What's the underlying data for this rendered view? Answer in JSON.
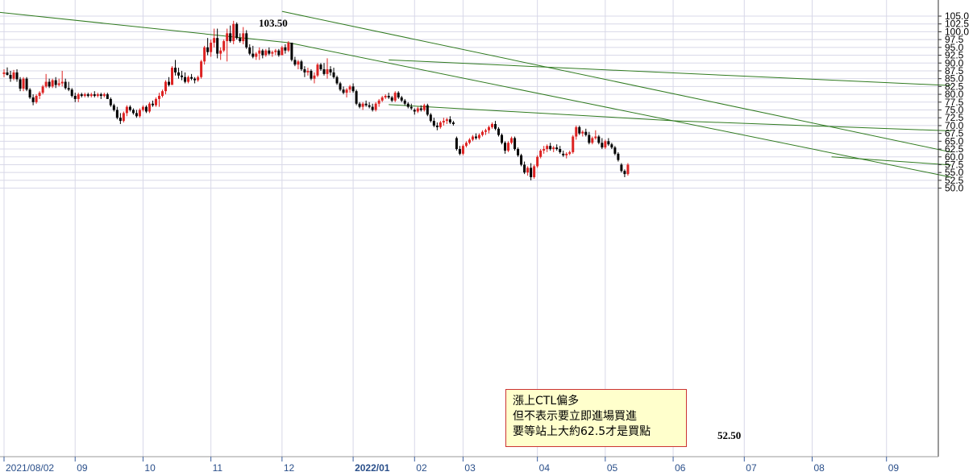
{
  "chart_data": {
    "type": "candlestick",
    "ylim": [
      50,
      106
    ],
    "yticks": [
      "105.0",
      "102.5",
      "100.0",
      "97.5",
      "95.0",
      "92.5",
      "90.0",
      "87.5",
      "85.0",
      "82.5",
      "80.0",
      "77.5",
      "75.0",
      "72.5",
      "70.0",
      "67.5",
      "65.0",
      "62.5",
      "60.0",
      "57.5",
      "55.0",
      "52.5",
      "50.0"
    ],
    "xticks": [
      {
        "label": "2021/08/02",
        "bar": 0
      },
      {
        "label": "09",
        "bar": 22
      },
      {
        "label": "10",
        "bar": 43
      },
      {
        "label": "11",
        "bar": 64
      },
      {
        "label": "12",
        "bar": 86
      },
      {
        "label": "2022/01",
        "bar": 108
      },
      {
        "label": "02",
        "bar": 127
      },
      {
        "label": "03",
        "bar": 142
      },
      {
        "label": "04",
        "bar": 165
      },
      {
        "label": "05",
        "bar": 186
      },
      {
        "label": "06",
        "bar": 207
      },
      {
        "label": "07",
        "bar": 229
      },
      {
        "label": "08",
        "bar": 250
      },
      {
        "label": "09",
        "bar": 273
      }
    ],
    "up_color": "#dd2222",
    "down_color": "#000000",
    "line_color": "#2f7a1f",
    "grid": true,
    "candles_ohlc": [
      [
        86.5,
        88.0,
        85.5,
        87.0
      ],
      [
        87.0,
        88.6,
        86.0,
        86.2
      ],
      [
        86.2,
        87.5,
        84.0,
        85.0
      ],
      [
        85.0,
        87.8,
        84.5,
        87.0
      ],
      [
        87.0,
        88.0,
        84.0,
        84.8
      ],
      [
        84.8,
        85.5,
        81.0,
        81.8
      ],
      [
        81.8,
        85.5,
        81.0,
        85.0
      ],
      [
        85.0,
        85.5,
        81.0,
        81.5
      ],
      [
        81.5,
        82.0,
        78.5,
        79.0
      ],
      [
        79.0,
        80.0,
        76.5,
        77.5
      ],
      [
        77.5,
        80.0,
        77.0,
        79.5
      ],
      [
        79.5,
        81.0,
        78.5,
        80.5
      ],
      [
        80.5,
        83.0,
        80.0,
        82.5
      ],
      [
        82.5,
        86.5,
        82.0,
        84.0
      ],
      [
        84.0,
        85.0,
        82.0,
        82.5
      ],
      [
        82.5,
        85.0,
        82.0,
        84.5
      ],
      [
        84.5,
        85.5,
        82.0,
        83.0
      ],
      [
        83.0,
        85.0,
        82.5,
        83.5
      ],
      [
        83.5,
        87.5,
        82.5,
        84.0
      ],
      [
        84.0,
        85.0,
        81.5,
        82.0
      ],
      [
        82.0,
        84.0,
        81.0,
        81.5
      ],
      [
        81.5,
        82.0,
        79.0,
        79.5
      ],
      [
        79.5,
        80.5,
        77.5,
        78.5
      ],
      [
        78.5,
        80.5,
        77.5,
        80.0
      ],
      [
        80.0,
        80.5,
        79.0,
        79.5
      ],
      [
        79.5,
        80.5,
        79.0,
        80.0
      ],
      [
        80.0,
        80.5,
        79.0,
        79.5
      ],
      [
        79.5,
        80.5,
        79.0,
        80.0
      ],
      [
        80.0,
        81.0,
        79.0,
        79.5
      ],
      [
        79.5,
        80.5,
        79.0,
        80.0
      ],
      [
        80.0,
        80.5,
        78.5,
        79.5
      ],
      [
        79.5,
        80.5,
        79.0,
        80.0
      ],
      [
        80.0,
        80.5,
        78.5,
        78.5
      ],
      [
        78.5,
        79.0,
        76.0,
        76.5
      ],
      [
        76.5,
        77.0,
        74.5,
        75.0
      ],
      [
        75.0,
        76.0,
        72.0,
        72.5
      ],
      [
        72.5,
        74.0,
        70.5,
        71.5
      ],
      [
        71.5,
        74.5,
        71.0,
        74.0
      ],
      [
        74.0,
        76.5,
        73.0,
        76.0
      ],
      [
        76.0,
        76.5,
        74.5,
        75.0
      ],
      [
        75.0,
        75.5,
        73.5,
        74.0
      ],
      [
        74.0,
        75.0,
        72.5,
        73.0
      ],
      [
        73.0,
        75.5,
        72.5,
        75.0
      ],
      [
        75.0,
        76.5,
        74.5,
        76.0
      ],
      [
        76.0,
        76.5,
        74.0,
        74.5
      ],
      [
        74.5,
        77.5,
        74.0,
        77.0
      ],
      [
        77.0,
        78.0,
        76.0,
        76.5
      ],
      [
        76.5,
        79.0,
        76.0,
        78.5
      ],
      [
        78.5,
        80.5,
        76.0,
        79.5
      ],
      [
        79.5,
        81.5,
        79.0,
        81.0
      ],
      [
        81.0,
        84.5,
        80.0,
        84.0
      ],
      [
        84.0,
        85.5,
        82.5,
        83.0
      ],
      [
        83.0,
        89.0,
        83.0,
        88.5
      ],
      [
        88.5,
        91.0,
        86.0,
        87.0
      ],
      [
        87.0,
        88.5,
        85.0,
        86.0
      ],
      [
        86.0,
        87.5,
        84.5,
        85.5
      ],
      [
        85.5,
        87.0,
        83.5,
        84.0
      ],
      [
        84.0,
        86.0,
        83.5,
        85.5
      ],
      [
        85.5,
        86.5,
        84.5,
        85.0
      ],
      [
        85.0,
        85.5,
        83.5,
        84.5
      ],
      [
        84.5,
        86.0,
        84.0,
        85.5
      ],
      [
        85.5,
        91.0,
        85.0,
        90.5
      ],
      [
        90.5,
        95.5,
        89.5,
        95.0
      ],
      [
        95.0,
        98.0,
        92.5,
        93.5
      ],
      [
        93.5,
        97.5,
        92.0,
        96.5
      ],
      [
        96.5,
        101.0,
        95.0,
        98.0
      ],
      [
        98.0,
        101.0,
        91.5,
        93.0
      ],
      [
        93.0,
        95.0,
        91.0,
        94.0
      ],
      [
        94.0,
        97.5,
        93.5,
        97.0
      ],
      [
        97.0,
        101.0,
        90.5,
        99.5
      ],
      [
        99.5,
        102.0,
        96.5,
        97.0
      ],
      [
        97.0,
        103.5,
        96.0,
        102.5
      ],
      [
        102.5,
        103.0,
        97.5,
        98.0
      ],
      [
        98.0,
        99.5,
        96.5,
        97.0
      ],
      [
        97.0,
        101.5,
        96.0,
        99.5
      ],
      [
        99.5,
        100.5,
        94.5,
        95.0
      ],
      [
        95.0,
        96.0,
        92.5,
        93.0
      ],
      [
        93.0,
        95.5,
        91.5,
        92.0
      ],
      [
        92.0,
        93.5,
        91.0,
        93.0
      ],
      [
        93.0,
        95.0,
        91.0,
        94.0
      ],
      [
        94.0,
        94.5,
        91.5,
        92.5
      ],
      [
        92.5,
        94.5,
        92.0,
        94.0
      ],
      [
        94.0,
        95.0,
        92.5,
        93.0
      ],
      [
        93.0,
        94.0,
        92.0,
        93.5
      ],
      [
        93.5,
        94.5,
        92.5,
        94.0
      ],
      [
        94.0,
        94.5,
        92.0,
        92.5
      ],
      [
        92.5,
        95.5,
        92.5,
        95.0
      ],
      [
        95.0,
        96.0,
        93.0,
        94.0
      ],
      [
        94.0,
        97.0,
        93.5,
        96.5
      ],
      [
        96.5,
        96.5,
        90.5,
        91.0
      ],
      [
        91.0,
        92.0,
        89.0,
        89.5
      ],
      [
        89.5,
        91.0,
        88.0,
        90.5
      ],
      [
        90.5,
        91.0,
        87.5,
        88.0
      ],
      [
        88.0,
        89.0,
        85.5,
        87.0
      ],
      [
        87.0,
        88.5,
        86.0,
        87.5
      ],
      [
        87.5,
        88.0,
        84.5,
        85.0
      ],
      [
        85.0,
        87.0,
        83.5,
        86.0
      ],
      [
        86.0,
        90.0,
        85.5,
        89.5
      ],
      [
        89.5,
        90.0,
        87.5,
        88.0
      ],
      [
        88.0,
        90.0,
        86.0,
        86.5
      ],
      [
        86.5,
        91.5,
        85.0,
        88.0
      ],
      [
        88.0,
        89.0,
        86.0,
        87.0
      ],
      [
        87.0,
        88.5,
        85.0,
        85.5
      ],
      [
        85.5,
        86.0,
        83.0,
        83.5
      ],
      [
        83.5,
        84.0,
        81.0,
        81.5
      ],
      [
        81.5,
        82.5,
        80.0,
        80.5
      ],
      [
        80.5,
        82.0,
        79.0,
        81.5
      ],
      [
        81.5,
        83.0,
        80.5,
        82.5
      ],
      [
        82.5,
        83.5,
        80.5,
        81.0
      ],
      [
        81.0,
        81.5,
        76.5,
        77.0
      ],
      [
        77.0,
        77.5,
        75.5,
        76.0
      ],
      [
        76.0,
        77.5,
        75.0,
        77.0
      ],
      [
        77.0,
        78.0,
        76.0,
        76.5
      ],
      [
        76.5,
        77.5,
        75.5,
        76.0
      ],
      [
        76.0,
        77.0,
        74.5,
        75.0
      ],
      [
        75.0,
        77.5,
        74.5,
        77.0
      ],
      [
        77.0,
        78.5,
        76.0,
        78.0
      ],
      [
        78.0,
        79.5,
        77.5,
        79.0
      ],
      [
        79.0,
        80.0,
        78.5,
        79.5
      ],
      [
        79.5,
        80.5,
        78.5,
        79.0
      ],
      [
        79.0,
        79.5,
        77.5,
        78.0
      ],
      [
        78.0,
        81.0,
        77.5,
        80.5
      ],
      [
        80.5,
        81.0,
        78.5,
        79.0
      ],
      [
        79.0,
        79.5,
        77.5,
        78.0
      ],
      [
        78.0,
        78.5,
        76.5,
        77.0
      ],
      [
        77.0,
        77.5,
        75.5,
        76.0
      ],
      [
        76.0,
        77.0,
        75.0,
        75.5
      ],
      [
        75.0,
        75.5,
        73.5,
        74.5
      ],
      [
        74.5,
        76.0,
        74.0,
        75.5
      ],
      [
        75.5,
        76.5,
        74.5,
        75.0
      ],
      [
        75.0,
        77.0,
        74.5,
        76.5
      ],
      [
        76.5,
        77.0,
        73.0,
        73.5
      ],
      [
        73.5,
        74.0,
        71.0,
        71.5
      ],
      [
        71.5,
        72.5,
        69.5,
        70.0
      ],
      [
        70.0,
        71.0,
        68.5,
        69.5
      ],
      [
        69.5,
        71.5,
        69.0,
        71.0
      ],
      [
        71.0,
        72.5,
        70.0,
        71.5
      ],
      [
        71.5,
        72.5,
        70.5,
        72.0
      ],
      [
        72.0,
        73.0,
        70.5,
        71.0
      ],
      [
        71.0,
        71.5,
        70.0,
        70.5
      ],
      [
        66.0,
        66.5,
        62.0,
        62.5
      ],
      [
        62.5,
        63.5,
        60.5,
        61.0
      ],
      [
        61.0,
        64.0,
        60.5,
        63.5
      ],
      [
        63.5,
        65.0,
        63.0,
        64.5
      ],
      [
        64.5,
        66.0,
        64.0,
        65.5
      ],
      [
        65.5,
        67.0,
        65.0,
        66.5
      ],
      [
        66.5,
        67.5,
        65.5,
        66.0
      ],
      [
        66.0,
        67.5,
        65.5,
        67.0
      ],
      [
        67.0,
        68.5,
        66.5,
        68.0
      ],
      [
        68.0,
        69.0,
        67.0,
        68.5
      ],
      [
        68.5,
        70.0,
        67.5,
        69.5
      ],
      [
        69.5,
        71.0,
        69.0,
        70.5
      ],
      [
        70.5,
        71.5,
        68.5,
        69.0
      ],
      [
        69.0,
        69.5,
        66.5,
        67.0
      ],
      [
        67.0,
        67.5,
        64.0,
        64.5
      ],
      [
        64.5,
        65.0,
        61.0,
        62.0
      ],
      [
        62.0,
        65.0,
        61.5,
        64.5
      ],
      [
        64.5,
        66.5,
        64.0,
        66.0
      ],
      [
        66.0,
        66.5,
        62.0,
        62.5
      ],
      [
        62.5,
        63.0,
        60.0,
        60.5
      ],
      [
        60.5,
        61.0,
        57.0,
        57.5
      ],
      [
        57.5,
        58.5,
        54.5,
        55.0
      ],
      [
        55.0,
        57.0,
        54.0,
        56.5
      ],
      [
        56.5,
        58.0,
        52.5,
        53.5
      ],
      [
        53.5,
        57.5,
        53.0,
        57.0
      ],
      [
        57.0,
        60.5,
        56.5,
        60.0
      ],
      [
        60.0,
        62.5,
        59.5,
        62.0
      ],
      [
        62.0,
        63.5,
        61.0,
        62.5
      ],
      [
        62.5,
        64.0,
        61.5,
        63.5
      ],
      [
        63.5,
        64.5,
        62.0,
        62.5
      ],
      [
        62.5,
        63.5,
        61.5,
        63.0
      ],
      [
        63.0,
        64.0,
        62.0,
        62.5
      ],
      [
        62.5,
        63.5,
        61.0,
        61.5
      ],
      [
        61.0,
        62.0,
        60.0,
        60.5
      ],
      [
        60.5,
        61.5,
        59.5,
        61.0
      ],
      [
        61.0,
        62.0,
        60.5,
        61.5
      ],
      [
        61.5,
        67.0,
        61.0,
        66.5
      ],
      [
        66.5,
        70.0,
        65.5,
        69.5
      ],
      [
        69.5,
        70.0,
        67.0,
        67.5
      ],
      [
        67.5,
        68.5,
        66.5,
        68.0
      ],
      [
        68.0,
        69.0,
        66.5,
        67.0
      ],
      [
        67.0,
        68.0,
        64.0,
        64.5
      ],
      [
        64.5,
        66.5,
        64.0,
        66.0
      ],
      [
        66.0,
        68.5,
        65.5,
        66.5
      ],
      [
        66.5,
        67.0,
        64.0,
        64.5
      ],
      [
        64.5,
        66.0,
        62.5,
        63.0
      ],
      [
        63.0,
        65.5,
        62.5,
        65.0
      ],
      [
        65.0,
        66.0,
        63.5,
        64.0
      ],
      [
        64.0,
        64.5,
        62.5,
        63.0
      ],
      [
        63.0,
        63.5,
        60.5,
        61.0
      ],
      [
        61.0,
        61.5,
        58.5,
        59.0
      ],
      [
        57.5,
        58.0,
        55.0,
        55.5
      ],
      [
        55.5,
        56.0,
        53.5,
        54.5
      ],
      [
        54.5,
        58.0,
        54.0,
        57.5
      ]
    ],
    "trendlines": [
      {
        "from": [
          -4,
          106.5
        ],
        "to": [
          88,
          96.5
        ]
      },
      {
        "from": [
          88,
          96.5
        ],
        "to": [
          293,
          53.5
        ]
      },
      {
        "from": [
          86,
          106.5
        ],
        "to": [
          293,
          61.5
        ]
      },
      {
        "from": [
          119,
          91.0
        ],
        "to": [
          293,
          82.8
        ]
      },
      {
        "from": [
          119,
          76.7
        ],
        "to": [
          208,
          71.5
        ]
      },
      {
        "from": [
          208,
          71.5
        ],
        "to": [
          293,
          68.3
        ]
      },
      {
        "from": [
          256,
          60.0
        ],
        "to": [
          293,
          57.4
        ]
      }
    ],
    "annotations": [
      "103.50",
      "52.50"
    ]
  },
  "annotation_box": {
    "line1": "漲上CTL偏多",
    "line2": "但不表示要立即進場買進",
    "line3": "要等站上大約62.5才是買點"
  }
}
